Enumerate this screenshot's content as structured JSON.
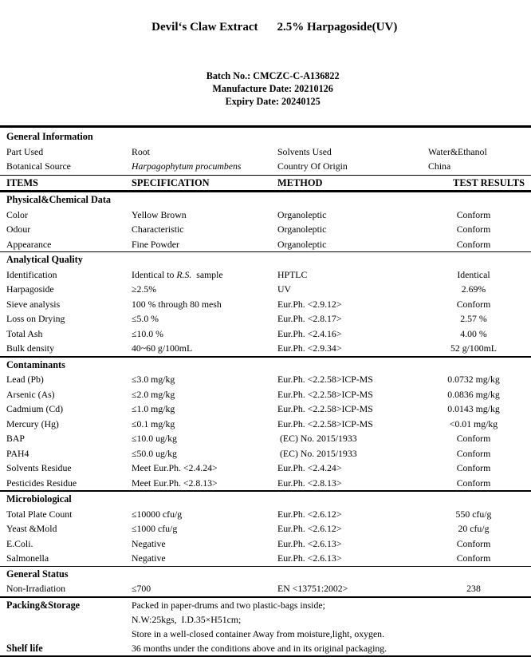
{
  "document": {
    "title": {
      "name": "Devil‘s Claw Extract",
      "assay": "2.5% Harpagoside(UV)"
    },
    "meta": [
      {
        "label": "Batch No.:",
        "value": "CMCZC-C-A136822"
      },
      {
        "label": "Manufacture Date:",
        "value": "20210126"
      },
      {
        "label": "Expiry Date:",
        "value": "20240125"
      }
    ],
    "general_information": {
      "heading": "General Information",
      "rows": [
        [
          "Part Used",
          "Root",
          "Solvents Used",
          "Water&Ethanol"
        ],
        [
          "Botanical Source",
          [
            {
              "t": "Harpagophytum procumbens",
              "i": true
            }
          ],
          "Country Of Origin",
          "China"
        ]
      ]
    },
    "columns": [
      "ITEMS",
      "SPECIFICATION",
      "METHOD",
      "TEST RESULTS"
    ],
    "sections": [
      {
        "heading": "Physical&Chemical Data",
        "rule": "thin",
        "rows": [
          [
            "Color",
            "Yellow Brown",
            "Organoleptic",
            "Conform"
          ],
          [
            "Odour",
            "Characteristic",
            "Organoleptic",
            "Conform"
          ],
          [
            "Appearance",
            "Fine Powder",
            "Organoleptic",
            "Conform"
          ]
        ]
      },
      {
        "heading": "Analytical Quality",
        "rule": "thick",
        "rows": [
          [
            "Identification",
            [
              {
                "t": "Identical to ",
                "i": false
              },
              {
                "t": "R.S.",
                "i": true
              },
              {
                "t": "  sample",
                "i": false
              }
            ],
            "HPTLC",
            "Identical"
          ],
          [
            "Harpagoside",
            "≥2.5%",
            "UV",
            "2.69%"
          ],
          [
            "Sieve analysis",
            "100 % through 80 mesh",
            "Eur.Ph. <2.9.12>",
            "Conform"
          ],
          [
            "Loss on Drying",
            "≤5.0 %",
            "Eur.Ph. <2.8.17>",
            "2.57 %"
          ],
          [
            "Total Ash",
            "≤10.0 %",
            "Eur.Ph. <2.4.16>",
            "4.00 %"
          ],
          [
            "Bulk density",
            "40~60 g/100mL",
            "Eur.Ph. <2.9.34>",
            "52 g/100mL"
          ]
        ]
      },
      {
        "heading": "Contaminants",
        "rule": "thick",
        "rows": [
          [
            "Lead (Pb)",
            "≤3.0 mg/kg",
            "Eur.Ph. <2.2.58>ICP-MS",
            "0.0732 mg/kg"
          ],
          [
            "Arsenic (As)",
            "≤2.0 mg/kg",
            "Eur.Ph. <2.2.58>ICP-MS",
            "0.0836 mg/kg"
          ],
          [
            "Cadmium (Cd)",
            "≤1.0 mg/kg",
            "Eur.Ph. <2.2.58>ICP-MS",
            "0.0143 mg/kg"
          ],
          [
            "Mercury (Hg)",
            "≤0.1 mg/kg",
            "Eur.Ph. <2.2.58>ICP-MS",
            "<0.01 mg/kg"
          ],
          [
            "BAP",
            "≤10.0 ug/kg",
            " (EC) No. 2015/1933",
            "Conform"
          ],
          [
            "PAH4",
            "≤50.0 ug/kg",
            " (EC) No. 2015/1933",
            "Conform"
          ],
          [
            "Solvents Residue",
            "Meet Eur.Ph. <2.4.24>",
            "Eur.Ph. <2.4.24>",
            "Conform"
          ],
          [
            "Pesticides Residue",
            "Meet Eur.Ph. <2.8.13>",
            "Eur.Ph. <2.8.13>",
            "Conform"
          ]
        ]
      },
      {
        "heading": "Microbiological",
        "rule": "thin",
        "rows": [
          [
            "Total Plate Count",
            "≤10000 cfu/g",
            "Eur.Ph. <2.6.12>",
            "550 cfu/g"
          ],
          [
            "Yeast &Mold",
            "≤1000 cfu/g",
            "Eur.Ph. <2.6.12>",
            "20 cfu/g"
          ],
          [
            "E.Coli.",
            "Negative",
            "Eur.Ph. <2.6.13>",
            "Conform"
          ],
          [
            "Salmonella",
            "Negative",
            "Eur.Ph. <2.6.13>",
            "Conform"
          ]
        ]
      },
      {
        "heading": "General Status",
        "rule": "thick",
        "rows": [
          [
            "Non-Irradiation",
            "≤700",
            "EN <13751:2002>",
            "238"
          ]
        ]
      }
    ],
    "footer": [
      {
        "label": "Packing&Storage",
        "lines": [
          "Packed in paper-drums and two plastic-bags inside;",
          "N.W:25kgs,  I.D.35×H51cm;",
          "Store in a well-closed container Away from moisture,light, oxygen."
        ]
      },
      {
        "label": "Shelf life",
        "lines": [
          "36 months under the conditions above and in its original packaging."
        ]
      }
    ]
  }
}
